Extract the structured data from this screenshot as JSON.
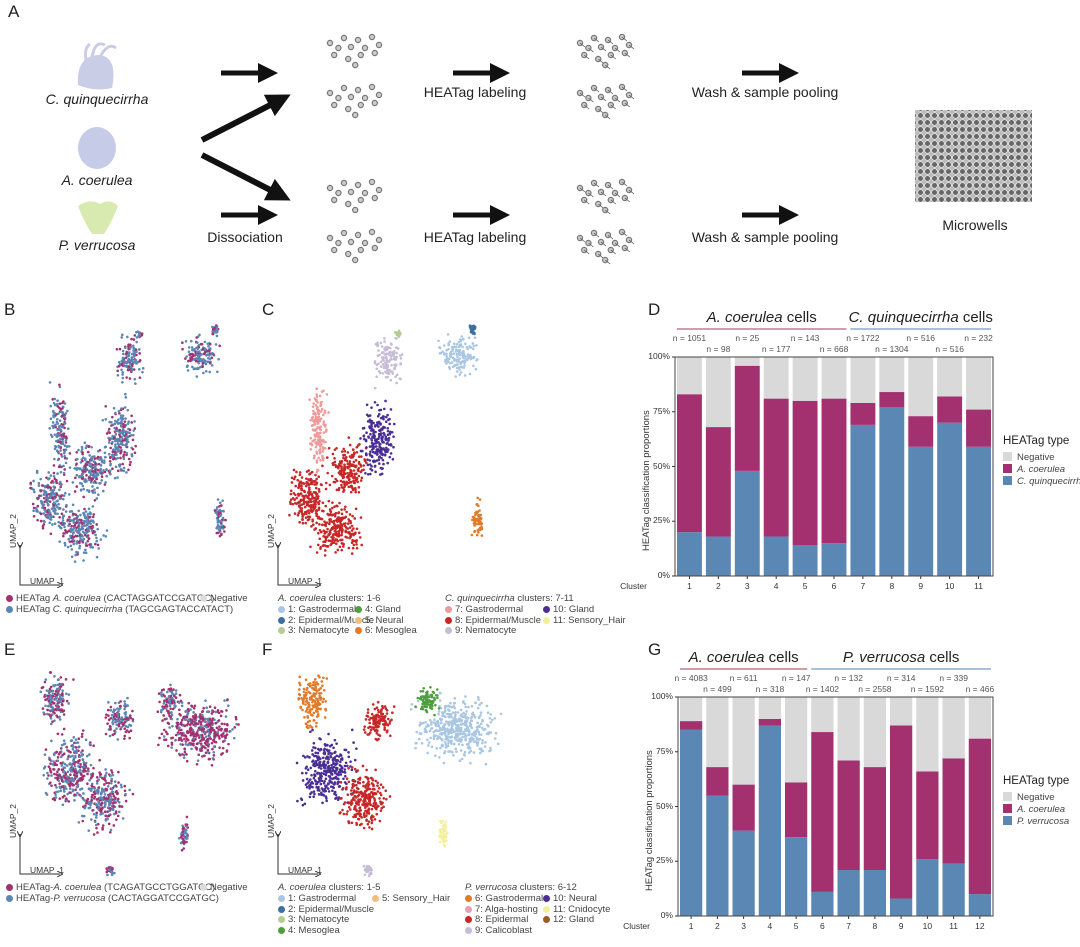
{
  "panels": {
    "A": "A",
    "B": "B",
    "C": "C",
    "D": "D",
    "E": "E",
    "F": "F",
    "G": "G"
  },
  "workflow": {
    "organisms": [
      "C. quinquecirrha",
      "A. coerulea",
      "P. verrucosa"
    ],
    "organism_colors": [
      "#c9cde6",
      "#c6cbe8",
      "#d9eab0"
    ],
    "step_dissociation": "Dissociation",
    "step_labeling": "HEATag labeling",
    "step_pooling": "Wash & sample pooling",
    "output": "Microwells"
  },
  "umap_axes": {
    "x": "UMAP_1",
    "y": "UMAP_2"
  },
  "colors": {
    "blue": "#5b87b5",
    "magenta": "#a3306f",
    "negative": "#d9d9d9",
    "line_pink": "#c97a8f",
    "line_blue": "#8fa8cf"
  },
  "panel_B": {
    "legend": [
      {
        "prefix": "HEATag ",
        "species": "A. coerulea",
        "suffix": " (CACTAGGATCCGATGC)",
        "color": "#a3306f"
      },
      {
        "prefix": "HEATag ",
        "species": "C. quinquecirrha",
        "suffix": " (TAGCGAGTACCATACT)",
        "color": "#5b87b5"
      }
    ],
    "negative": "Negative"
  },
  "panel_C": {
    "group1_species": "A. coerulea",
    "group1_suffix": " clusters: 1-6",
    "group2_species": "C. quinquecirrha",
    "group2_suffix": " clusters: 7-11",
    "clusters": [
      {
        "label": "1: Gastrodermal",
        "color": "#a9c6e2"
      },
      {
        "label": "2: Epidermal/Muscle",
        "color": "#3d6fa3"
      },
      {
        "label": "3: Nematocyte",
        "color": "#b5cc95"
      },
      {
        "label": "4: Gland",
        "color": "#4f9e3f"
      },
      {
        "label": "5: Neural",
        "color": "#eec07e"
      },
      {
        "label": "6: Mesoglea",
        "color": "#e07b2a"
      },
      {
        "label": "7: Gastrodermal",
        "color": "#ef9a9a"
      },
      {
        "label": "8: Epidermal/Muscle",
        "color": "#c62828"
      },
      {
        "label": "9: Nematocyte",
        "color": "#c7bcd6"
      },
      {
        "label": "10: Gland",
        "color": "#4b2e94"
      },
      {
        "label": "11: Sensory_Hair",
        "color": "#f3ef9a"
      }
    ]
  },
  "panel_E": {
    "legend": [
      {
        "prefix": "HEATag-",
        "species": "A. coerulea",
        "suffix": " (TCAGATGCCTGGATCC)",
        "color": "#a3306f"
      },
      {
        "prefix": "HEATag-",
        "species": "P. verrucosa",
        "suffix": " (CACTAGGATCCGATGC)",
        "color": "#5b87b5"
      }
    ],
    "negative": "Negative"
  },
  "panel_F": {
    "group1_species": "A. coerulea",
    "group1_suffix": " clusters: 1-5",
    "group2_species": "P. verrucosa",
    "group2_suffix": " clusters: 6-12",
    "clusters": [
      {
        "label": "1: Gastrodermal",
        "color": "#a9c6e2"
      },
      {
        "label": "2: Epidermal/Muscle",
        "color": "#3d6fa3"
      },
      {
        "label": "3: Nematocyte",
        "color": "#b5cc95"
      },
      {
        "label": "4: Mesoglea",
        "color": "#4f9e3f"
      },
      {
        "label": "5: Sensory_Hair",
        "color": "#eec07e"
      },
      {
        "label": "6: Gastrodermal",
        "color": "#e07b2a"
      },
      {
        "label": "7: Alga-hosting",
        "color": "#e6a0b4"
      },
      {
        "label": "8: Epidermal",
        "color": "#c62828"
      },
      {
        "label": "9: Calicoblast",
        "color": "#c7bcd6"
      },
      {
        "label": "10: Neural",
        "color": "#4b2e94"
      },
      {
        "label": "11: Cnidocyte",
        "color": "#f3ef9a"
      },
      {
        "label": "12: Gland",
        "color": "#9a5b2a"
      }
    ]
  },
  "chart_data": [
    {
      "id": "D",
      "type": "bar",
      "stacked": true,
      "ylabel": "HEATag classification proportions",
      "xlabel": "Cluster",
      "categories": [
        "1",
        "2",
        "3",
        "4",
        "5",
        "6",
        "7",
        "8",
        "9",
        "10",
        "11"
      ],
      "yticks": [
        "0%",
        "25%",
        "50%",
        "75%",
        "100%"
      ],
      "ylim": [
        0,
        100
      ],
      "n_labels": [
        "n = 1051",
        "n = 98",
        "n = 25",
        "n = 177",
        "n = 143",
        "n = 668",
        "n = 1722",
        "n = 1304",
        "n = 516",
        "n = 516",
        "n = 232"
      ],
      "groups": [
        {
          "species": "A. coerulea",
          "suffix": " cells",
          "from": 1,
          "to": 6,
          "line": "pink"
        },
        {
          "species": "C. quinquecirrha",
          "suffix": " cells",
          "from": 7,
          "to": 11,
          "line": "blue"
        }
      ],
      "legend_title": "HEATag type",
      "legend_position": "right",
      "series": [
        {
          "name": "C. quinquecirrha",
          "color": "#5b87b5",
          "values": [
            20,
            18,
            48,
            18,
            14,
            15,
            69,
            77,
            59,
            70,
            59
          ]
        },
        {
          "name": "A. coerulea",
          "color": "#a3306f",
          "values": [
            63,
            50,
            48,
            63,
            66,
            66,
            10,
            7,
            14,
            12,
            17
          ]
        },
        {
          "name": "Negative",
          "color": "#d9d9d9",
          "values": [
            17,
            32,
            4,
            19,
            20,
            19,
            21,
            16,
            27,
            18,
            24
          ]
        }
      ]
    },
    {
      "id": "G",
      "type": "bar",
      "stacked": true,
      "ylabel": "HEATag classification proportions",
      "xlabel": "Cluster",
      "categories": [
        "1",
        "2",
        "3",
        "4",
        "5",
        "6",
        "7",
        "8",
        "9",
        "10",
        "11",
        "12"
      ],
      "yticks": [
        "0%",
        "25%",
        "50%",
        "75%",
        "100%"
      ],
      "ylim": [
        0,
        100
      ],
      "n_labels": [
        "n = 4083",
        "n = 499",
        "n = 611",
        "n = 318",
        "n = 147",
        "n = 1402",
        "n = 132",
        "n = 2558",
        "n = 314",
        "n = 1592",
        "n = 339",
        "n = 466"
      ],
      "groups": [
        {
          "species": "A. coerulea",
          "suffix": " cells",
          "from": 1,
          "to": 5,
          "line": "pink"
        },
        {
          "species": "P. verrucosa",
          "suffix": " cells",
          "from": 6,
          "to": 12,
          "line": "blue"
        }
      ],
      "legend_title": "HEATag type",
      "legend_position": "right",
      "series": [
        {
          "name": "P. verrucosa",
          "color": "#5b87b5",
          "values": [
            85,
            55,
            39,
            87,
            36,
            11,
            21,
            21,
            8,
            26,
            24,
            10
          ]
        },
        {
          "name": "A. coerulea",
          "color": "#a3306f",
          "values": [
            4,
            13,
            21,
            3,
            25,
            73,
            50,
            47,
            79,
            40,
            48,
            71
          ]
        },
        {
          "name": "Negative",
          "color": "#d9d9d9",
          "values": [
            11,
            32,
            40,
            10,
            39,
            16,
            29,
            32,
            13,
            34,
            28,
            19
          ]
        }
      ]
    }
  ]
}
